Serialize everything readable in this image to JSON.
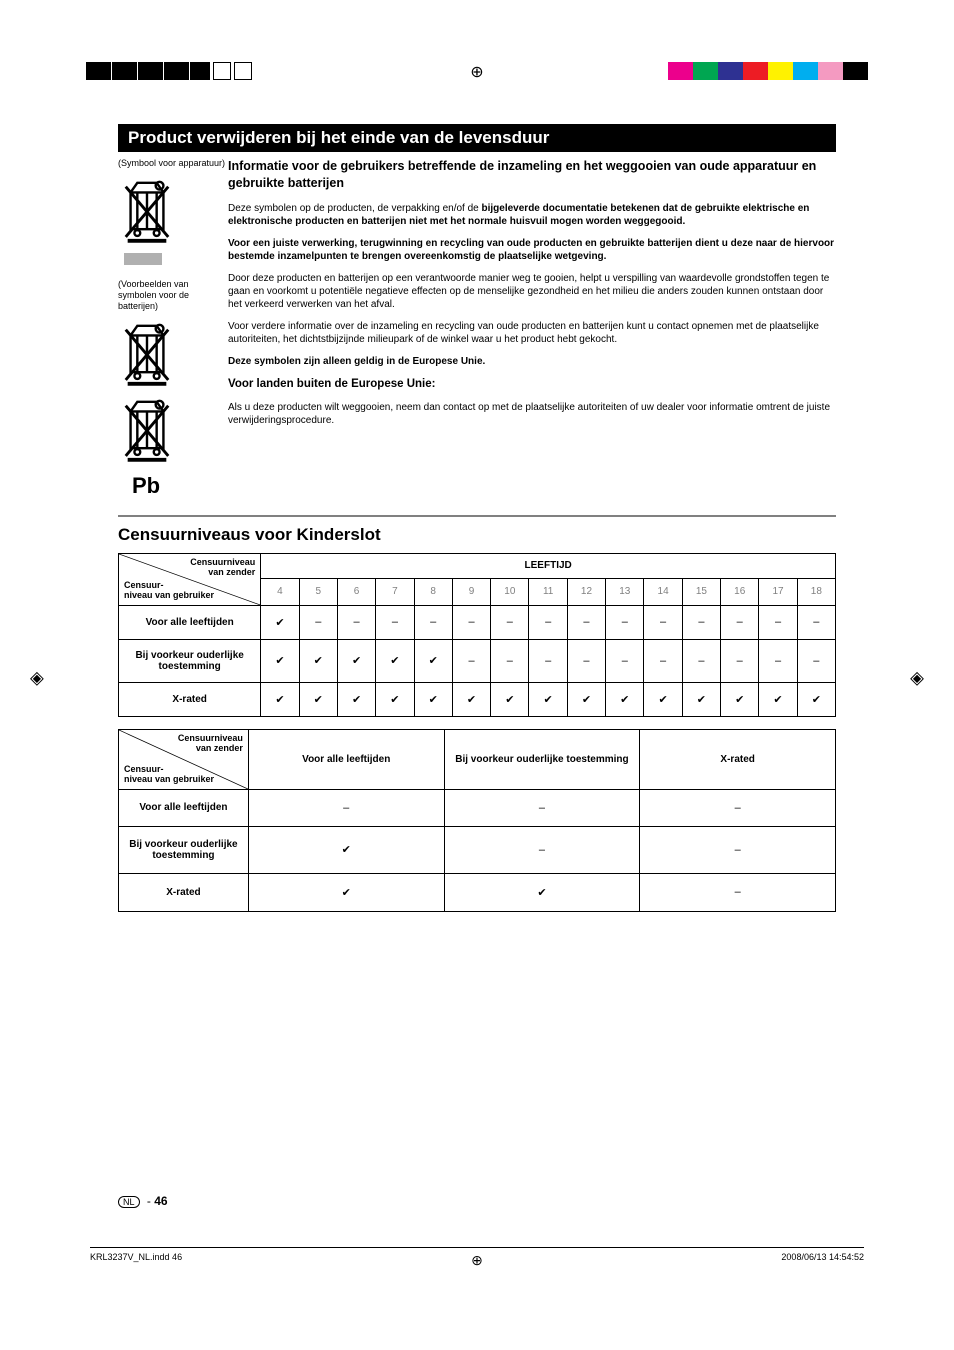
{
  "topbar": {
    "right_colors": [
      "#ec008c",
      "#00a651",
      "#2e3192",
      "#ed1c24",
      "#fff200",
      "#00aeef",
      "#f49ac1",
      "#000000"
    ]
  },
  "section1": {
    "banner": "Product verwijderen bij het einde van de levensduur",
    "left_caption1": "(Symbool voor apparatuur)",
    "left_caption2": "(Voorbeelden van symbolen voor de batterijen)",
    "pb": "Pb",
    "title": "Informatie voor de gebruikers betreffende de inzameling en het weggooien van oude apparatuur en gebruikte batterijen",
    "p1a": "Deze symbolen op de producten, de verpakking en/of de ",
    "p1b": "bijgeleverde documentatie betekenen dat de gebruikte elektrische en elektronische producten en batterijen niet met het normale huisvuil mogen worden weggegooid.",
    "p2": "Voor een juiste verwerking, terugwinning en recycling van oude producten en gebruikte batterijen dient u deze naar de hiervoor bestemde inzamelpunten te brengen overeenkomstig de plaatselijke wetgeving.",
    "p3": "Door deze producten en batterijen op een verantwoorde manier weg te gooien, helpt u verspilling van waardevolle grondstoffen tegen te gaan en voorkomt u potentiële negatieve effecten op de menselijke gezondheid en het milieu die anders zouden kunnen ontstaan door het verkeerd verwerken van het afval.",
    "p4": "Voor verdere informatie over de inzameling en recycling van oude producten en batterijen kunt u contact opnemen met de plaatselijke autoriteiten, het dichtstbijzijnde milieupark of de winkel waar u het product hebt gekocht.",
    "p5": "Deze symbolen zijn alleen geldig in de Europese Unie.",
    "sub": "Voor landen buiten de Europese Unie:",
    "p6": "Als u deze producten wilt weggooien, neem dan contact op met de plaatselijke autoriteiten of uw dealer voor informatie omtrent de juiste verwijderingsprocedure."
  },
  "section2": {
    "heading": "Censuurniveaus voor Kinderslot",
    "diag_top1": "Censuurniveau",
    "diag_top2": "van zender",
    "diag_bot1": "Censuur-",
    "diag_bot2": "niveau van gebruiker",
    "t1": {
      "age_head": "LEEFTIJD",
      "ages": [
        "4",
        "5",
        "6",
        "7",
        "8",
        "9",
        "10",
        "11",
        "12",
        "13",
        "14",
        "15",
        "16",
        "17",
        "18"
      ],
      "rows": [
        {
          "label": "Voor alle leeftijden",
          "cells": [
            "✔",
            "–",
            "–",
            "–",
            "–",
            "–",
            "–",
            "–",
            "–",
            "–",
            "–",
            "–",
            "–",
            "–",
            "–"
          ]
        },
        {
          "label": "Bij voorkeur ouderlijke toestemming",
          "cells": [
            "✔",
            "✔",
            "✔",
            "✔",
            "✔",
            "–",
            "–",
            "–",
            "–",
            "–",
            "–",
            "–",
            "–",
            "–",
            "–"
          ]
        },
        {
          "label": "X-rated",
          "cells": [
            "✔",
            "✔",
            "✔",
            "✔",
            "✔",
            "✔",
            "✔",
            "✔",
            "✔",
            "✔",
            "✔",
            "✔",
            "✔",
            "✔",
            "✔"
          ]
        }
      ]
    },
    "t2": {
      "cols": [
        "Voor alle leeftijden",
        "Bij voorkeur ouderlijke toestemming",
        "X-rated"
      ],
      "rows": [
        {
          "label": "Voor alle leeftijden",
          "cells": [
            "–",
            "–",
            "–"
          ]
        },
        {
          "label": "Bij voorkeur ouderlijke toestemming",
          "cells": [
            "✔",
            "–",
            "–"
          ]
        },
        {
          "label": "X-rated",
          "cells": [
            "✔",
            "✔",
            "–"
          ]
        }
      ]
    }
  },
  "footer": {
    "lang": "NL",
    "dash": " - ",
    "page": "46",
    "imprint_left": "KRL3237V_NL.indd   46",
    "imprint_right": "2008/06/13   14:54:52"
  }
}
